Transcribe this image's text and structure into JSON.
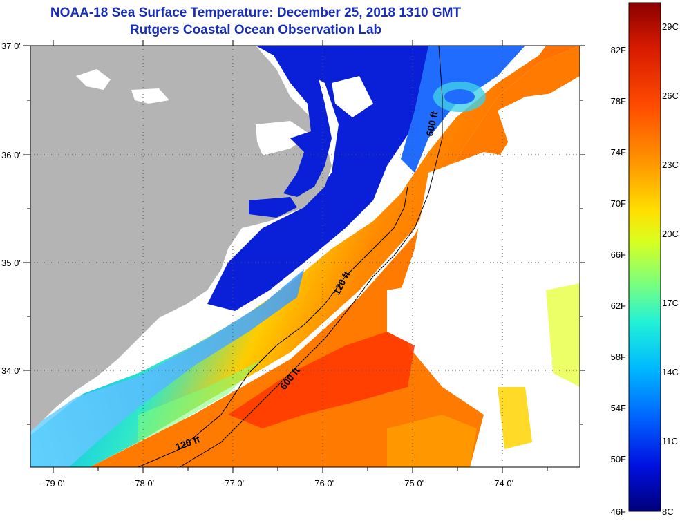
{
  "title": "NOAA-18 Sea Surface Temperature:  December 25, 2018 1310 GMT",
  "subtitle": "Rutgers Coastal Ocean Observation Lab",
  "lon_ticks": [
    "-79 0'",
    "-78 0'",
    "-77 0'",
    "-76 0'",
    "-75 0'",
    "-74 0'"
  ],
  "lat_ticks": [
    "37 0'",
    "36 0'",
    "35 0'",
    "34 0'"
  ],
  "contours": [
    {
      "label": "600 ft"
    },
    {
      "label": "120 ft"
    },
    {
      "label": "600 ft"
    },
    {
      "label": "120 ft"
    }
  ],
  "colorbar": {
    "fahrenheit": [
      "82F",
      "78F",
      "74F",
      "70F",
      "66F",
      "62F",
      "58F",
      "54F",
      "50F",
      "46F"
    ],
    "celsius": [
      "29C",
      "26C",
      "23C",
      "20C",
      "17C",
      "14C",
      "11C",
      "8C"
    ],
    "colors": [
      "#8b0000",
      "#d81b00",
      "#ff4a00",
      "#ff9a00",
      "#ffe000",
      "#d8ff20",
      "#7dff7a",
      "#20f0d8",
      "#00b8ff",
      "#0060ff",
      "#0010e0",
      "#00007a"
    ]
  },
  "colors": {
    "land": "#b4b4b4",
    "cloud": "#ffffff",
    "title": "#1a2fb8"
  }
}
